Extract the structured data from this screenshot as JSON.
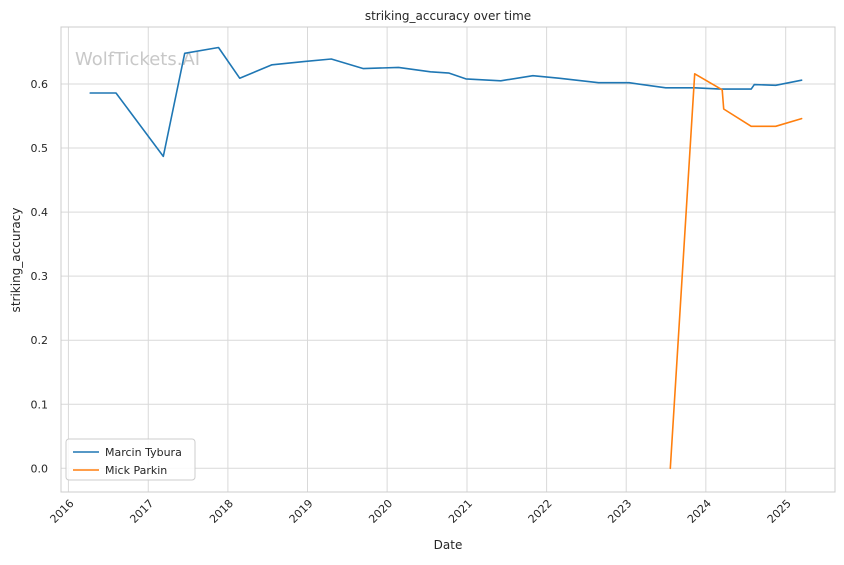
{
  "chart_data": {
    "type": "line",
    "title": "striking_accuracy over time",
    "xlabel": "Date",
    "ylabel": "striking_accuracy",
    "watermark": "WolfTickets.AI",
    "x_ticks": [
      "2016",
      "2017",
      "2018",
      "2019",
      "2020",
      "2021",
      "2022",
      "2023",
      "2024",
      "2025"
    ],
    "y_ticks": [
      "0.0",
      "0.1",
      "0.2",
      "0.3",
      "0.4",
      "0.5",
      "0.6"
    ],
    "xlim": [
      "2015-11-28",
      "2025-08-15"
    ],
    "ylim": [
      -0.037,
      0.689
    ],
    "grid": true,
    "legend_position": "lower-left",
    "series": [
      {
        "name": "Marcin Tybura",
        "color": "#1f77b4",
        "points": [
          [
            "2016-04-10",
            0.586
          ],
          [
            "2016-08-06",
            0.586
          ],
          [
            "2017-03-11",
            0.487
          ],
          [
            "2017-06-17",
            0.648
          ],
          [
            "2017-11-19",
            0.657
          ],
          [
            "2018-02-24",
            0.609
          ],
          [
            "2018-07-22",
            0.63
          ],
          [
            "2018-12-15",
            0.635
          ],
          [
            "2019-04-20",
            0.639
          ],
          [
            "2019-09-14",
            0.624
          ],
          [
            "2020-02-22",
            0.626
          ],
          [
            "2020-07-18",
            0.619
          ],
          [
            "2020-10-11",
            0.617
          ],
          [
            "2020-12-27",
            0.608
          ],
          [
            "2021-06-05",
            0.605
          ],
          [
            "2021-10-30",
            0.613
          ],
          [
            "2022-02-26",
            0.609
          ],
          [
            "2022-08-27",
            0.602
          ],
          [
            "2023-01-14",
            0.602
          ],
          [
            "2023-07-01",
            0.594
          ],
          [
            "2023-11-11",
            0.594
          ],
          [
            "2024-03-09",
            0.592
          ],
          [
            "2024-07-27",
            0.592
          ],
          [
            "2024-08-10",
            0.599
          ],
          [
            "2024-11-16",
            0.598
          ],
          [
            "2025-03-15",
            0.606
          ]
        ]
      },
      {
        "name": "Mick Parkin",
        "color": "#ff7f0e",
        "points": [
          [
            "2023-07-22",
            0.0
          ],
          [
            "2023-11-11",
            0.616
          ],
          [
            "2024-03-16",
            0.591
          ],
          [
            "2024-03-23",
            0.561
          ],
          [
            "2024-07-27",
            0.534
          ],
          [
            "2024-11-16",
            0.534
          ],
          [
            "2025-03-15",
            0.546
          ]
        ]
      }
    ]
  }
}
